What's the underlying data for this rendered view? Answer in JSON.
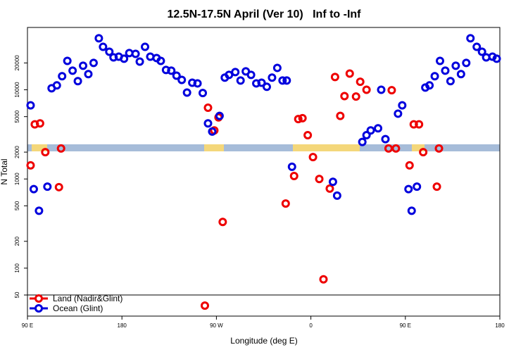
{
  "chart_data": {
    "type": "scatter",
    "title": "12.5N-17.5N April (Ver 10)   Inf to -Inf",
    "xlabel": "Longitude (deg E)",
    "ylabel": "N Total",
    "xlim": [
      90,
      540
    ],
    "ylim": [
      29,
      50000
    ],
    "yscale": "log",
    "xticks": [
      {
        "value": 90,
        "label": "90 E"
      },
      180,
      {
        "value": 270,
        "label": "90 W"
      },
      {
        "value": 360,
        "label": "0"
      },
      {
        "value": 450,
        "label": "90 E"
      },
      {
        "value": 540,
        "label": "180"
      }
    ],
    "yticks": [
      50,
      100,
      200,
      500,
      1000,
      2000,
      5000,
      10000,
      20000
    ],
    "legend": "lower left",
    "series": [
      {
        "name": "Land (Nadir&Glint)",
        "color": "#ee0000",
        "x": [
          93,
          97,
          102,
          107,
          120,
          122,
          262,
          268,
          272,
          276,
          259,
          336,
          344,
          348,
          352,
          357,
          362,
          368,
          372,
          378,
          383,
          388,
          392,
          397,
          403,
          407,
          413,
          434,
          437,
          441,
          454,
          458,
          463,
          467,
          480,
          482
        ],
        "y": [
          1420,
          4100,
          4200,
          2000,
          810,
          2200,
          6300,
          3500,
          4900,
          330,
          38,
          530,
          1080,
          4700,
          4800,
          3100,
          1760,
          1000,
          75,
          780,
          13900,
          5100,
          8500,
          15200,
          8400,
          12300,
          10000,
          2200,
          9900,
          2200,
          1420,
          4100,
          4100,
          2000,
          820,
          2200
        ]
      },
      {
        "name": "Ocean (Glint)",
        "color": "#0000dd",
        "x": [
          93,
          96,
          101,
          109,
          113,
          118,
          123,
          128,
          133,
          138,
          143,
          148,
          153,
          158,
          162,
          168,
          172,
          177,
          182,
          187,
          193,
          197,
          202,
          207,
          213,
          217,
          222,
          227,
          232,
          237,
          242,
          247,
          252,
          257,
          262,
          266,
          273,
          278,
          282,
          288,
          293,
          298,
          303,
          308,
          313,
          318,
          323,
          328,
          333,
          337,
          342,
          381,
          385,
          409,
          413,
          417,
          424,
          427,
          431,
          443,
          447,
          453,
          456,
          461,
          469,
          473,
          478,
          483,
          488,
          493,
          498,
          503,
          508,
          512,
          518,
          523,
          527,
          533,
          537
        ],
        "y": [
          6700,
          770,
          440,
          820,
          10400,
          11200,
          14200,
          21100,
          16400,
          12500,
          18600,
          15000,
          20000,
          37800,
          30300,
          26700,
          23100,
          23500,
          22300,
          25800,
          25300,
          20700,
          30300,
          23500,
          22700,
          21100,
          16700,
          16400,
          14400,
          12900,
          9300,
          12000,
          11800,
          9200,
          4200,
          3400,
          5100,
          13700,
          14700,
          15800,
          12700,
          16100,
          14700,
          11800,
          12000,
          10800,
          13700,
          17600,
          12700,
          12700,
          1370,
          930,
          650,
          2600,
          3100,
          3500,
          3700,
          10000,
          2800,
          5400,
          6700,
          770,
          440,
          820,
          10600,
          11200,
          14200,
          21100,
          16400,
          12500,
          18600,
          15000,
          20000,
          37800,
          30300,
          26700,
          23100,
          23500,
          22300
        ]
      }
    ]
  }
}
